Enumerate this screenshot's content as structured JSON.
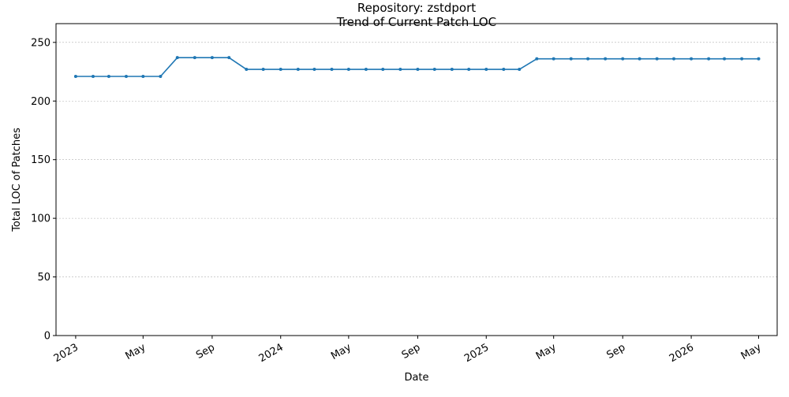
{
  "chart_data": {
    "type": "line",
    "title_line1": "Repository: zstdport",
    "title_line2": "Trend of Current Patch LOC",
    "xlabel": "Date",
    "ylabel": "Total LOC of Patches",
    "ylim": [
      0,
      266
    ],
    "xlim": [
      "2022-11-27",
      "2026-06-03"
    ],
    "yticks": [
      0,
      50,
      100,
      150,
      200,
      250
    ],
    "xticks": [
      {
        "date": "2023-01-01",
        "label": "2023"
      },
      {
        "date": "2023-05-01",
        "label": "May"
      },
      {
        "date": "2023-09-01",
        "label": "Sep"
      },
      {
        "date": "2024-01-01",
        "label": "2024"
      },
      {
        "date": "2024-05-01",
        "label": "May"
      },
      {
        "date": "2024-09-01",
        "label": "Sep"
      },
      {
        "date": "2025-01-01",
        "label": "2025"
      },
      {
        "date": "2025-05-01",
        "label": "May"
      },
      {
        "date": "2025-09-01",
        "label": "Sep"
      },
      {
        "date": "2026-01-01",
        "label": "2026"
      },
      {
        "date": "2026-05-01",
        "label": "May"
      }
    ],
    "grid": {
      "y": true,
      "x": false
    },
    "series_color": "#1f77b4",
    "x": [
      "2023-01-01",
      "2023-02-01",
      "2023-03-01",
      "2023-04-01",
      "2023-05-01",
      "2023-06-01",
      "2023-07-01",
      "2023-08-01",
      "2023-09-01",
      "2023-10-01",
      "2023-11-01",
      "2023-12-01",
      "2024-01-01",
      "2024-02-01",
      "2024-03-01",
      "2024-04-01",
      "2024-05-01",
      "2024-06-01",
      "2024-07-01",
      "2024-08-01",
      "2024-09-01",
      "2024-10-01",
      "2024-11-01",
      "2024-12-01",
      "2025-01-01",
      "2025-02-01",
      "2025-03-01",
      "2025-04-01",
      "2025-05-01",
      "2025-06-01",
      "2025-07-01",
      "2025-08-01",
      "2025-09-01",
      "2025-10-01",
      "2025-11-01",
      "2025-12-01",
      "2026-01-01",
      "2026-02-01",
      "2026-03-01",
      "2026-04-01",
      "2026-05-01"
    ],
    "values": [
      221,
      221,
      221,
      221,
      221,
      221,
      237,
      237,
      237,
      237,
      227,
      227,
      227,
      227,
      227,
      227,
      227,
      227,
      227,
      227,
      227,
      227,
      227,
      227,
      227,
      227,
      227,
      236,
      236,
      236,
      236,
      236,
      236,
      236,
      236,
      236,
      236,
      236,
      236,
      236,
      236
    ]
  }
}
